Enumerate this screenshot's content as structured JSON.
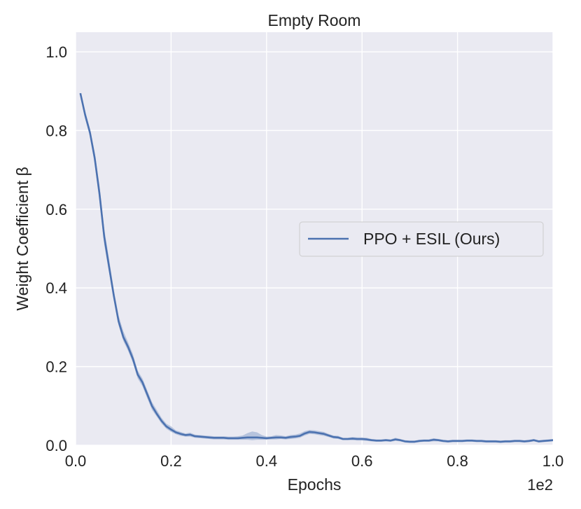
{
  "chart_data": {
    "type": "line",
    "title": "Empty Room",
    "xlabel": "Epochs",
    "ylabel": "Weight Coefficient β",
    "x_offset_label": "1e2",
    "xlim": [
      0.0,
      1.0
    ],
    "ylim": [
      0.0,
      1.05
    ],
    "x_ticks": [
      0.0,
      0.2,
      0.4,
      0.6,
      0.8,
      1.0
    ],
    "x_tick_labels": [
      "0.0",
      "0.2",
      "0.4",
      "0.6",
      "0.8",
      "1.0"
    ],
    "y_ticks": [
      0.0,
      0.2,
      0.4,
      0.6,
      0.8,
      1.0
    ],
    "y_tick_labels": [
      "0.0",
      "0.2",
      "0.4",
      "0.6",
      "0.8",
      "1.0"
    ],
    "grid": true,
    "legend_position": "center-right",
    "colors": {
      "series": "#4c72b0",
      "band": "#a4b6d6",
      "plot_bg": "#eaeaf2",
      "grid": "#ffffff"
    },
    "series": [
      {
        "name": "PPO + ESIL (Ours)",
        "x": [
          0.01,
          0.02,
          0.03,
          0.04,
          0.05,
          0.06,
          0.07,
          0.08,
          0.09,
          0.1,
          0.11,
          0.12,
          0.13,
          0.14,
          0.15,
          0.16,
          0.17,
          0.18,
          0.19,
          0.2,
          0.21,
          0.22,
          0.23,
          0.24,
          0.25,
          0.26,
          0.27,
          0.28,
          0.29,
          0.3,
          0.31,
          0.32,
          0.33,
          0.34,
          0.35,
          0.36,
          0.37,
          0.38,
          0.39,
          0.4,
          0.41,
          0.42,
          0.43,
          0.44,
          0.45,
          0.46,
          0.47,
          0.48,
          0.49,
          0.5,
          0.51,
          0.52,
          0.53,
          0.54,
          0.55,
          0.56,
          0.57,
          0.58,
          0.59,
          0.6,
          0.61,
          0.62,
          0.63,
          0.64,
          0.65,
          0.66,
          0.67,
          0.68,
          0.69,
          0.7,
          0.71,
          0.72,
          0.73,
          0.74,
          0.75,
          0.76,
          0.77,
          0.78,
          0.79,
          0.8,
          0.81,
          0.82,
          0.83,
          0.84,
          0.85,
          0.86,
          0.87,
          0.88,
          0.89,
          0.9,
          0.91,
          0.92,
          0.93,
          0.94,
          0.95,
          0.96,
          0.97,
          0.98,
          0.99,
          1.0
        ],
        "y": [
          0.895,
          0.84,
          0.795,
          0.73,
          0.64,
          0.53,
          0.455,
          0.38,
          0.315,
          0.275,
          0.25,
          0.22,
          0.18,
          0.16,
          0.13,
          0.1,
          0.08,
          0.062,
          0.048,
          0.04,
          0.033,
          0.029,
          0.026,
          0.027,
          0.023,
          0.022,
          0.021,
          0.02,
          0.019,
          0.019,
          0.019,
          0.018,
          0.018,
          0.018,
          0.019,
          0.02,
          0.02,
          0.02,
          0.019,
          0.018,
          0.019,
          0.02,
          0.02,
          0.019,
          0.021,
          0.022,
          0.024,
          0.03,
          0.034,
          0.033,
          0.031,
          0.029,
          0.025,
          0.021,
          0.02,
          0.016,
          0.016,
          0.017,
          0.016,
          0.016,
          0.015,
          0.013,
          0.012,
          0.012,
          0.013,
          0.012,
          0.015,
          0.013,
          0.01,
          0.009,
          0.009,
          0.011,
          0.012,
          0.012,
          0.014,
          0.013,
          0.011,
          0.01,
          0.011,
          0.011,
          0.011,
          0.012,
          0.012,
          0.011,
          0.011,
          0.01,
          0.01,
          0.01,
          0.009,
          0.01,
          0.01,
          0.011,
          0.011,
          0.01,
          0.011,
          0.013,
          0.01,
          0.011,
          0.012,
          0.013
        ],
        "lower": [
          0.895,
          0.83,
          0.785,
          0.715,
          0.62,
          0.51,
          0.44,
          0.37,
          0.305,
          0.265,
          0.24,
          0.21,
          0.17,
          0.15,
          0.12,
          0.09,
          0.073,
          0.055,
          0.042,
          0.034,
          0.028,
          0.024,
          0.022,
          0.022,
          0.019,
          0.018,
          0.017,
          0.016,
          0.015,
          0.015,
          0.015,
          0.014,
          0.014,
          0.014,
          0.014,
          0.014,
          0.013,
          0.014,
          0.014,
          0.014,
          0.015,
          0.015,
          0.016,
          0.015,
          0.016,
          0.017,
          0.019,
          0.025,
          0.029,
          0.028,
          0.026,
          0.024,
          0.021,
          0.017,
          0.016,
          0.013,
          0.013,
          0.013,
          0.012,
          0.012,
          0.011,
          0.01,
          0.009,
          0.009,
          0.01,
          0.009,
          0.011,
          0.01,
          0.007,
          0.006,
          0.006,
          0.008,
          0.009,
          0.009,
          0.01,
          0.01,
          0.008,
          0.007,
          0.008,
          0.008,
          0.008,
          0.009,
          0.009,
          0.008,
          0.008,
          0.007,
          0.007,
          0.007,
          0.006,
          0.007,
          0.007,
          0.008,
          0.008,
          0.007,
          0.008,
          0.01,
          0.007,
          0.008,
          0.009,
          0.01
        ],
        "upper": [
          0.895,
          0.85,
          0.805,
          0.745,
          0.66,
          0.55,
          0.475,
          0.395,
          0.33,
          0.29,
          0.262,
          0.232,
          0.19,
          0.17,
          0.14,
          0.11,
          0.09,
          0.07,
          0.055,
          0.048,
          0.038,
          0.034,
          0.03,
          0.032,
          0.027,
          0.026,
          0.025,
          0.024,
          0.023,
          0.023,
          0.023,
          0.022,
          0.022,
          0.023,
          0.025,
          0.031,
          0.035,
          0.033,
          0.026,
          0.022,
          0.023,
          0.026,
          0.025,
          0.023,
          0.026,
          0.027,
          0.03,
          0.036,
          0.039,
          0.038,
          0.036,
          0.034,
          0.029,
          0.025,
          0.024,
          0.019,
          0.019,
          0.021,
          0.02,
          0.02,
          0.019,
          0.016,
          0.015,
          0.015,
          0.016,
          0.015,
          0.019,
          0.016,
          0.013,
          0.012,
          0.012,
          0.014,
          0.015,
          0.015,
          0.018,
          0.016,
          0.014,
          0.013,
          0.014,
          0.014,
          0.014,
          0.015,
          0.015,
          0.014,
          0.014,
          0.013,
          0.013,
          0.013,
          0.012,
          0.013,
          0.013,
          0.014,
          0.014,
          0.013,
          0.014,
          0.016,
          0.013,
          0.014,
          0.015,
          0.016
        ]
      }
    ]
  }
}
